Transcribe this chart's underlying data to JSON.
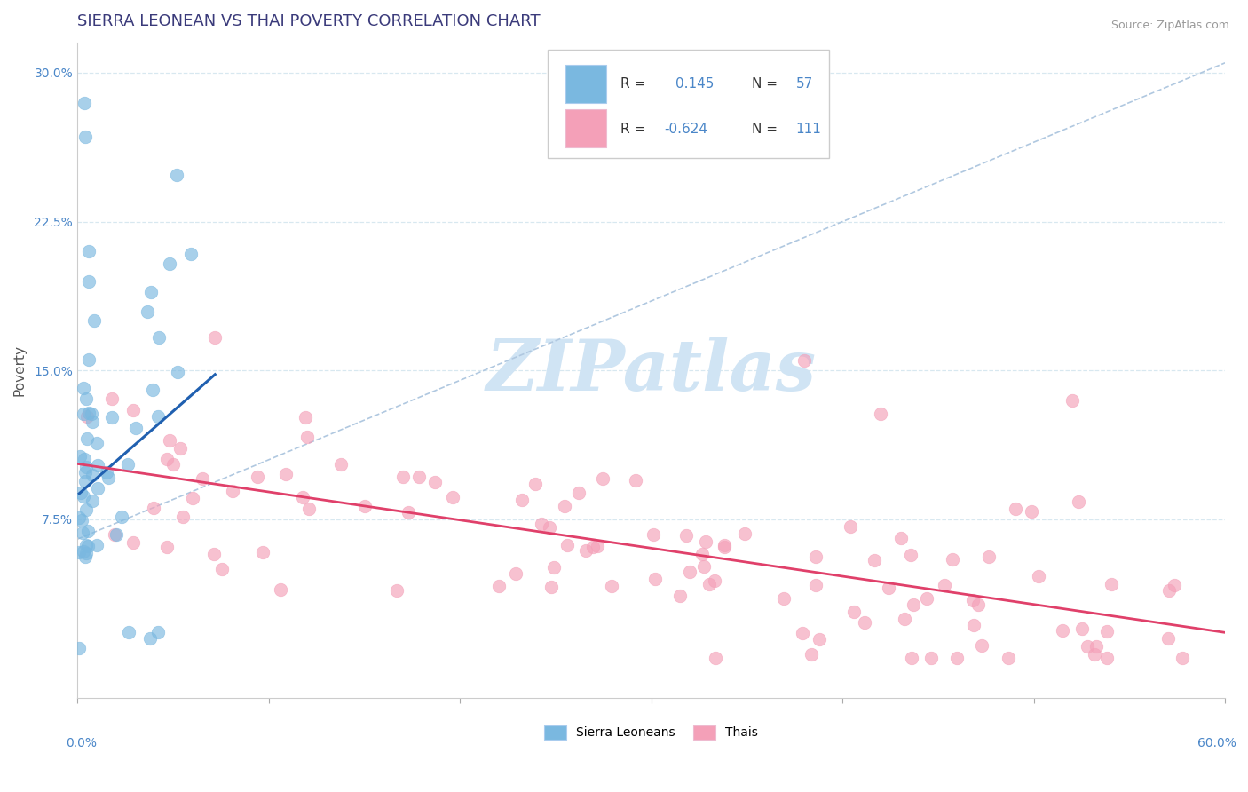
{
  "title": "SIERRA LEONEAN VS THAI POVERTY CORRELATION CHART",
  "source": "Source: ZipAtlas.com",
  "ylabel": "Poverty",
  "yticks": [
    0.0,
    0.075,
    0.15,
    0.225,
    0.3
  ],
  "ytick_labels": [
    "",
    "7.5%",
    "15.0%",
    "22.5%",
    "30.0%"
  ],
  "xlim": [
    0.0,
    0.6
  ],
  "ylim": [
    -0.015,
    0.315
  ],
  "blue_color": "#7ab8e0",
  "pink_color": "#f4a0b8",
  "blue_line_color": "#2060b0",
  "pink_line_color": "#e0406a",
  "dashed_line_color": "#b0c8e0",
  "title_color": "#3a3a7a",
  "axis_label_color": "#4a86c8",
  "grid_color": "#d8e8f0",
  "watermark_color": "#d0e4f4",
  "blue_r": 0.145,
  "blue_n": 57,
  "pink_r": -0.624,
  "pink_n": 111,
  "blue_line_x": [
    0.001,
    0.072
  ],
  "blue_line_y": [
    0.088,
    0.148
  ],
  "pink_line_x": [
    0.0,
    0.6
  ],
  "pink_line_y": [
    0.103,
    0.018
  ],
  "dashed_line_x": [
    0.0,
    0.6
  ],
  "dashed_line_y": [
    0.065,
    0.305
  ]
}
